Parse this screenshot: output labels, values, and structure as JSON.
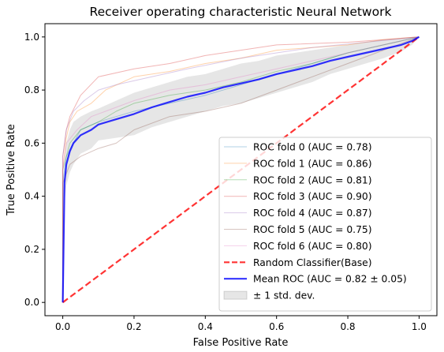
{
  "chart_data": {
    "type": "line",
    "title": "Receiver operating characteristic Neural Network",
    "xlabel": "False Positive Rate",
    "ylabel": "True Positive Rate",
    "xlim": [
      -0.05,
      1.05
    ],
    "ylim": [
      -0.05,
      1.05
    ],
    "xticks": [
      0.0,
      0.2,
      0.4,
      0.6,
      0.8,
      1.0
    ],
    "yticks": [
      0.0,
      0.2,
      0.4,
      0.6,
      0.8,
      1.0
    ],
    "xtick_labels": [
      "0.0",
      "0.2",
      "0.4",
      "0.6",
      "0.8",
      "1.0"
    ],
    "ytick_labels": [
      "0.0",
      "0.2",
      "0.4",
      "0.6",
      "0.8",
      "1.0"
    ],
    "grid": false,
    "legend_position": "lower-right",
    "series": [
      {
        "name": "ROC fold 0 (AUC = 0.78)",
        "color": "#1f77b4",
        "role": "fold",
        "x": [
          0,
          0,
          0.01,
          0.03,
          0.05,
          0.1,
          0.15,
          0.2,
          0.3,
          0.4,
          0.5,
          0.6,
          0.7,
          0.8,
          0.9,
          1.0
        ],
        "y": [
          0,
          0.45,
          0.55,
          0.6,
          0.65,
          0.68,
          0.7,
          0.72,
          0.75,
          0.78,
          0.82,
          0.86,
          0.9,
          0.94,
          0.97,
          1.0
        ]
      },
      {
        "name": "ROC fold 1 (AUC = 0.86)",
        "color": "#ff7f0e",
        "role": "fold",
        "x": [
          0,
          0,
          0.01,
          0.02,
          0.04,
          0.08,
          0.12,
          0.2,
          0.3,
          0.4,
          0.5,
          0.6,
          0.8,
          0.9,
          1.0
        ],
        "y": [
          0,
          0.5,
          0.62,
          0.68,
          0.72,
          0.75,
          0.8,
          0.85,
          0.87,
          0.9,
          0.92,
          0.95,
          0.97,
          0.99,
          1.0
        ]
      },
      {
        "name": "ROC fold 2 (AUC = 0.81)",
        "color": "#2ca02c",
        "role": "fold",
        "x": [
          0,
          0,
          0.02,
          0.05,
          0.1,
          0.15,
          0.2,
          0.3,
          0.4,
          0.5,
          0.6,
          0.7,
          0.8,
          0.9,
          1.0
        ],
        "y": [
          0,
          0.5,
          0.6,
          0.65,
          0.68,
          0.72,
          0.75,
          0.78,
          0.8,
          0.83,
          0.87,
          0.9,
          0.94,
          0.97,
          1.0
        ]
      },
      {
        "name": "ROC fold 3 (AUC = 0.90)",
        "color": "#d62728",
        "role": "fold",
        "x": [
          0,
          0,
          0.01,
          0.02,
          0.05,
          0.1,
          0.2,
          0.3,
          0.4,
          0.5,
          0.6,
          0.8,
          0.9,
          1.0
        ],
        "y": [
          0,
          0.55,
          0.65,
          0.7,
          0.78,
          0.85,
          0.88,
          0.9,
          0.93,
          0.95,
          0.97,
          0.98,
          0.99,
          1.0
        ]
      },
      {
        "name": "ROC fold 4 (AUC = 0.87)",
        "color": "#9467bd",
        "role": "fold",
        "x": [
          0,
          0,
          0.01,
          0.03,
          0.06,
          0.1,
          0.15,
          0.25,
          0.35,
          0.5,
          0.6,
          0.7,
          0.85,
          1.0
        ],
        "y": [
          0,
          0.55,
          0.65,
          0.72,
          0.76,
          0.8,
          0.82,
          0.85,
          0.88,
          0.92,
          0.94,
          0.96,
          0.98,
          1.0
        ]
      },
      {
        "name": "ROC fold 5 (AUC = 0.75)",
        "color": "#8c564b",
        "role": "fold",
        "x": [
          0,
          0,
          0.02,
          0.05,
          0.1,
          0.15,
          0.2,
          0.3,
          0.4,
          0.5,
          0.6,
          0.7,
          0.8,
          0.9,
          1.0
        ],
        "y": [
          0,
          0.45,
          0.52,
          0.55,
          0.58,
          0.6,
          0.65,
          0.7,
          0.72,
          0.75,
          0.8,
          0.85,
          0.9,
          0.95,
          1.0
        ]
      },
      {
        "name": "ROC fold 6 (AUC = 0.80)",
        "color": "#e377c2",
        "role": "fold",
        "x": [
          0,
          0,
          0.01,
          0.04,
          0.08,
          0.12,
          0.2,
          0.3,
          0.4,
          0.5,
          0.6,
          0.7,
          0.8,
          0.9,
          1.0
        ],
        "y": [
          0,
          0.5,
          0.6,
          0.65,
          0.7,
          0.72,
          0.76,
          0.8,
          0.82,
          0.85,
          0.88,
          0.91,
          0.94,
          0.97,
          1.0
        ]
      },
      {
        "name": "Random Classifier(Base)",
        "color": "#ff0000",
        "role": "baseline",
        "x": [
          0,
          1
        ],
        "y": [
          0,
          1
        ]
      },
      {
        "name": "Mean ROC (AUC = 0.82 ± 0.05)",
        "color": "#0000ff",
        "role": "mean",
        "x": [
          0,
          0.005,
          0.01,
          0.02,
          0.03,
          0.05,
          0.08,
          0.1,
          0.15,
          0.2,
          0.25,
          0.3,
          0.35,
          0.4,
          0.45,
          0.5,
          0.55,
          0.6,
          0.65,
          0.7,
          0.75,
          0.8,
          0.85,
          0.9,
          0.95,
          0.98,
          1.0
        ],
        "y": [
          0,
          0.45,
          0.52,
          0.57,
          0.6,
          0.63,
          0.65,
          0.67,
          0.69,
          0.71,
          0.735,
          0.755,
          0.775,
          0.79,
          0.81,
          0.825,
          0.84,
          0.86,
          0.875,
          0.89,
          0.91,
          0.925,
          0.94,
          0.955,
          0.97,
          0.985,
          1.0
        ]
      }
    ],
    "std_band": {
      "name": "± 1 std. dev.",
      "color": "#808080",
      "x": [
        0,
        0.005,
        0.01,
        0.02,
        0.03,
        0.05,
        0.08,
        0.1,
        0.15,
        0.2,
        0.25,
        0.3,
        0.35,
        0.4,
        0.45,
        0.5,
        0.55,
        0.6,
        0.65,
        0.7,
        0.75,
        0.8,
        0.85,
        0.9,
        0.95,
        0.98,
        1.0
      ],
      "upper": [
        0,
        0.52,
        0.6,
        0.65,
        0.68,
        0.7,
        0.72,
        0.73,
        0.76,
        0.79,
        0.81,
        0.83,
        0.85,
        0.86,
        0.88,
        0.9,
        0.91,
        0.93,
        0.94,
        0.95,
        0.96,
        0.97,
        0.98,
        0.99,
        0.995,
        1.0,
        1.0
      ],
      "lower": [
        0,
        0.38,
        0.44,
        0.49,
        0.52,
        0.56,
        0.58,
        0.61,
        0.62,
        0.63,
        0.66,
        0.68,
        0.7,
        0.72,
        0.74,
        0.75,
        0.77,
        0.79,
        0.81,
        0.83,
        0.86,
        0.88,
        0.9,
        0.92,
        0.945,
        0.97,
        1.0
      ]
    }
  }
}
